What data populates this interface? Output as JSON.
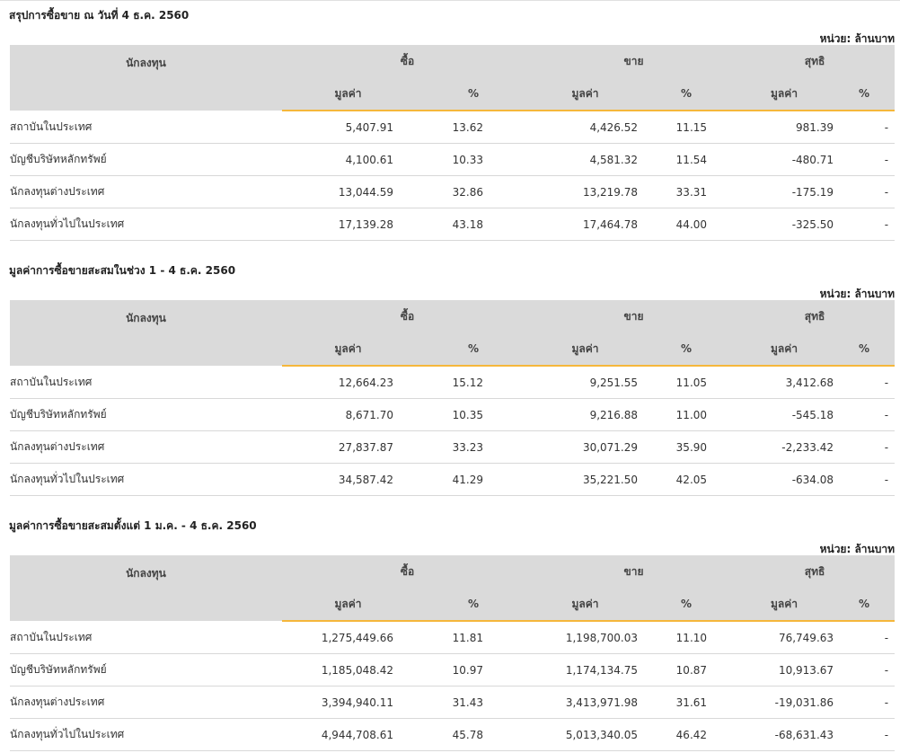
{
  "unit_label": "หน่วย: ล้านบาท",
  "columns": {
    "investor": "นักลงทุน",
    "buy": "ซื้อ",
    "sell": "ขาย",
    "net": "สุทธิ",
    "value": "มูลค่า",
    "percent": "%"
  },
  "sections": [
    {
      "title": "สรุปการซื้อขาย ณ วันที่ 4 ธ.ค. 2560",
      "rows": [
        {
          "name": "สถาบันในประเทศ",
          "buy_value": "5,407.91",
          "buy_pct": "13.62",
          "sell_value": "4,426.52",
          "sell_pct": "11.15",
          "net_value": "981.39",
          "net_pct": "-",
          "net_sign": "pos"
        },
        {
          "name": "บัญชีบริษัทหลักทรัพย์",
          "buy_value": "4,100.61",
          "buy_pct": "10.33",
          "sell_value": "4,581.32",
          "sell_pct": "11.54",
          "net_value": "-480.71",
          "net_pct": "-",
          "net_sign": "neg"
        },
        {
          "name": "นักลงทุนต่างประเทศ",
          "buy_value": "13,044.59",
          "buy_pct": "32.86",
          "sell_value": "13,219.78",
          "sell_pct": "33.31",
          "net_value": "-175.19",
          "net_pct": "-",
          "net_sign": "neg"
        },
        {
          "name": "นักลงทุนทั่วไปในประเทศ",
          "buy_value": "17,139.28",
          "buy_pct": "43.18",
          "sell_value": "17,464.78",
          "sell_pct": "44.00",
          "net_value": "-325.50",
          "net_pct": "-",
          "net_sign": "neg"
        }
      ]
    },
    {
      "title": "มูลค่าการซื้อขายสะสมในช่วง 1 - 4 ธ.ค. 2560",
      "rows": [
        {
          "name": "สถาบันในประเทศ",
          "buy_value": "12,664.23",
          "buy_pct": "15.12",
          "sell_value": "9,251.55",
          "sell_pct": "11.05",
          "net_value": "3,412.68",
          "net_pct": "-",
          "net_sign": "pos"
        },
        {
          "name": "บัญชีบริษัทหลักทรัพย์",
          "buy_value": "8,671.70",
          "buy_pct": "10.35",
          "sell_value": "9,216.88",
          "sell_pct": "11.00",
          "net_value": "-545.18",
          "net_pct": "-",
          "net_sign": "neg"
        },
        {
          "name": "นักลงทุนต่างประเทศ",
          "buy_value": "27,837.87",
          "buy_pct": "33.23",
          "sell_value": "30,071.29",
          "sell_pct": "35.90",
          "net_value": "-2,233.42",
          "net_pct": "-",
          "net_sign": "neg"
        },
        {
          "name": "นักลงทุนทั่วไปในประเทศ",
          "buy_value": "34,587.42",
          "buy_pct": "41.29",
          "sell_value": "35,221.50",
          "sell_pct": "42.05",
          "net_value": "-634.08",
          "net_pct": "-",
          "net_sign": "neg"
        }
      ]
    },
    {
      "title": "มูลค่าการซื้อขายสะสมตั้งแต่ 1 ม.ค. - 4 ธ.ค. 2560",
      "rows": [
        {
          "name": "สถาบันในประเทศ",
          "buy_value": "1,275,449.66",
          "buy_pct": "11.81",
          "sell_value": "1,198,700.03",
          "sell_pct": "11.10",
          "net_value": "76,749.63",
          "net_pct": "-",
          "net_sign": "pos"
        },
        {
          "name": "บัญชีบริษัทหลักทรัพย์",
          "buy_value": "1,185,048.42",
          "buy_pct": "10.97",
          "sell_value": "1,174,134.75",
          "sell_pct": "10.87",
          "net_value": "10,913.67",
          "net_pct": "-",
          "net_sign": "pos"
        },
        {
          "name": "นักลงทุนต่างประเทศ",
          "buy_value": "3,394,940.11",
          "buy_pct": "31.43",
          "sell_value": "3,413,971.98",
          "sell_pct": "31.61",
          "net_value": "-19,031.86",
          "net_pct": "-",
          "net_sign": "neg"
        },
        {
          "name": "นักลงทุนทั่วไปในประเทศ",
          "buy_value": "4,944,708.61",
          "buy_pct": "45.78",
          "sell_value": "5,013,340.05",
          "sell_pct": "46.42",
          "net_value": "-68,631.43",
          "net_pct": "-",
          "net_sign": "neg"
        }
      ]
    }
  ]
}
